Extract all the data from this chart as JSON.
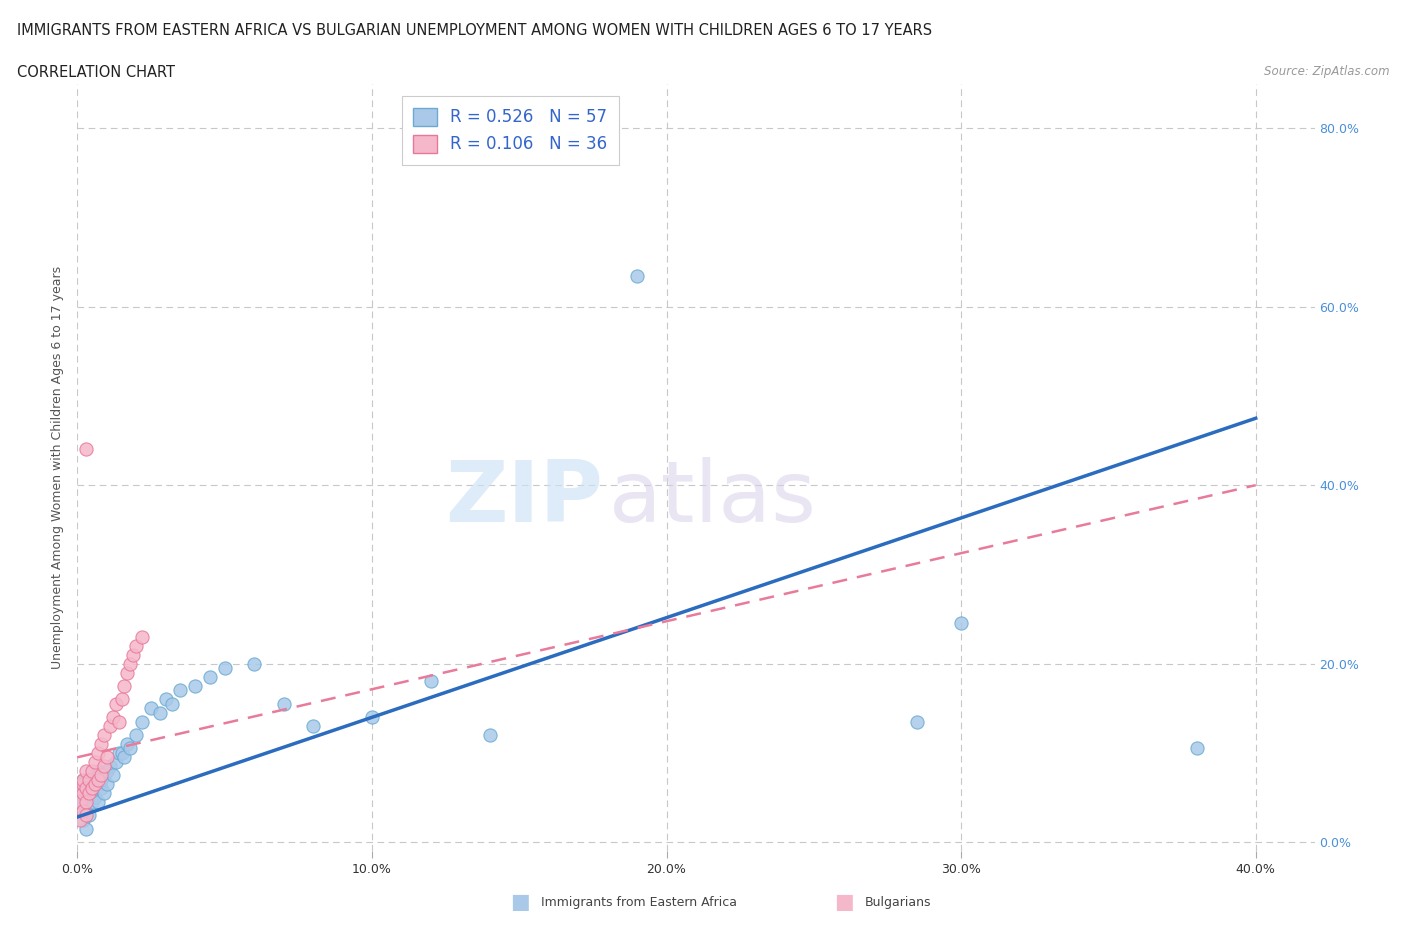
{
  "title": "IMMIGRANTS FROM EASTERN AFRICA VS BULGARIAN UNEMPLOYMENT AMONG WOMEN WITH CHILDREN AGES 6 TO 17 YEARS",
  "subtitle": "CORRELATION CHART",
  "source": "Source: ZipAtlas.com",
  "ylabel": "Unemployment Among Women with Children Ages 6 to 17 years",
  "watermark_zip": "ZIP",
  "watermark_atlas": "atlas",
  "xlim": [
    0.0,
    0.42
  ],
  "ylim": [
    -0.01,
    0.85
  ],
  "x_ticks": [
    0.0,
    0.1,
    0.2,
    0.3,
    0.4
  ],
  "x_tick_labels": [
    "0.0%",
    "10.0%",
    "20.0%",
    "30.0%",
    "40.0%"
  ],
  "y_ticks": [
    0.0,
    0.2,
    0.4,
    0.6,
    0.8
  ],
  "y_tick_labels_right": [
    "0.0%",
    "20.0%",
    "40.0%",
    "60.0%",
    "80.0%"
  ],
  "grid_color": "#c8c8c8",
  "background_color": "#ffffff",
  "series1_color": "#aac9e8",
  "series1_edge": "#6aaad4",
  "series2_color": "#f5b8cb",
  "series2_edge": "#e8789a",
  "line1_color": "#2b6cbf",
  "line2_color": "#e87a9a",
  "legend1_label": "R = 0.526   N = 57",
  "legend2_label": "R = 0.106   N = 36",
  "footer1": "Immigrants from Eastern Africa",
  "footer2": "Bulgarians",
  "line1_x0": 0.0,
  "line1_y0": 0.028,
  "line1_x1": 0.4,
  "line1_y1": 0.475,
  "line2_x0": 0.0,
  "line2_y0": 0.095,
  "line2_x1": 0.4,
  "line2_y1": 0.4,
  "scatter1_x": [
    0.001,
    0.001,
    0.001,
    0.002,
    0.002,
    0.002,
    0.002,
    0.003,
    0.003,
    0.003,
    0.003,
    0.004,
    0.004,
    0.004,
    0.005,
    0.005,
    0.005,
    0.006,
    0.006,
    0.006,
    0.007,
    0.007,
    0.007,
    0.008,
    0.008,
    0.009,
    0.009,
    0.01,
    0.01,
    0.011,
    0.012,
    0.013,
    0.014,
    0.015,
    0.016,
    0.017,
    0.018,
    0.02,
    0.022,
    0.025,
    0.028,
    0.03,
    0.032,
    0.035,
    0.04,
    0.045,
    0.05,
    0.06,
    0.07,
    0.08,
    0.1,
    0.12,
    0.14,
    0.19,
    0.285,
    0.3,
    0.38
  ],
  "scatter1_y": [
    0.055,
    0.04,
    0.065,
    0.045,
    0.06,
    0.07,
    0.025,
    0.05,
    0.07,
    0.035,
    0.015,
    0.055,
    0.03,
    0.065,
    0.045,
    0.06,
    0.07,
    0.05,
    0.06,
    0.075,
    0.065,
    0.08,
    0.045,
    0.06,
    0.07,
    0.055,
    0.075,
    0.065,
    0.08,
    0.085,
    0.075,
    0.09,
    0.1,
    0.1,
    0.095,
    0.11,
    0.105,
    0.12,
    0.135,
    0.15,
    0.145,
    0.16,
    0.155,
    0.17,
    0.175,
    0.185,
    0.195,
    0.2,
    0.155,
    0.13,
    0.14,
    0.18,
    0.12,
    0.635,
    0.135,
    0.245,
    0.105
  ],
  "scatter2_x": [
    0.001,
    0.001,
    0.001,
    0.002,
    0.002,
    0.002,
    0.002,
    0.003,
    0.003,
    0.003,
    0.003,
    0.004,
    0.004,
    0.005,
    0.005,
    0.006,
    0.006,
    0.007,
    0.007,
    0.008,
    0.008,
    0.009,
    0.009,
    0.01,
    0.011,
    0.012,
    0.013,
    0.014,
    0.015,
    0.016,
    0.017,
    0.018,
    0.019,
    0.02,
    0.003,
    0.022
  ],
  "scatter2_y": [
    0.045,
    0.06,
    0.025,
    0.055,
    0.065,
    0.035,
    0.07,
    0.045,
    0.06,
    0.08,
    0.03,
    0.055,
    0.07,
    0.06,
    0.08,
    0.065,
    0.09,
    0.07,
    0.1,
    0.075,
    0.11,
    0.085,
    0.12,
    0.095,
    0.13,
    0.14,
    0.155,
    0.135,
    0.16,
    0.175,
    0.19,
    0.2,
    0.21,
    0.22,
    0.44,
    0.23
  ]
}
